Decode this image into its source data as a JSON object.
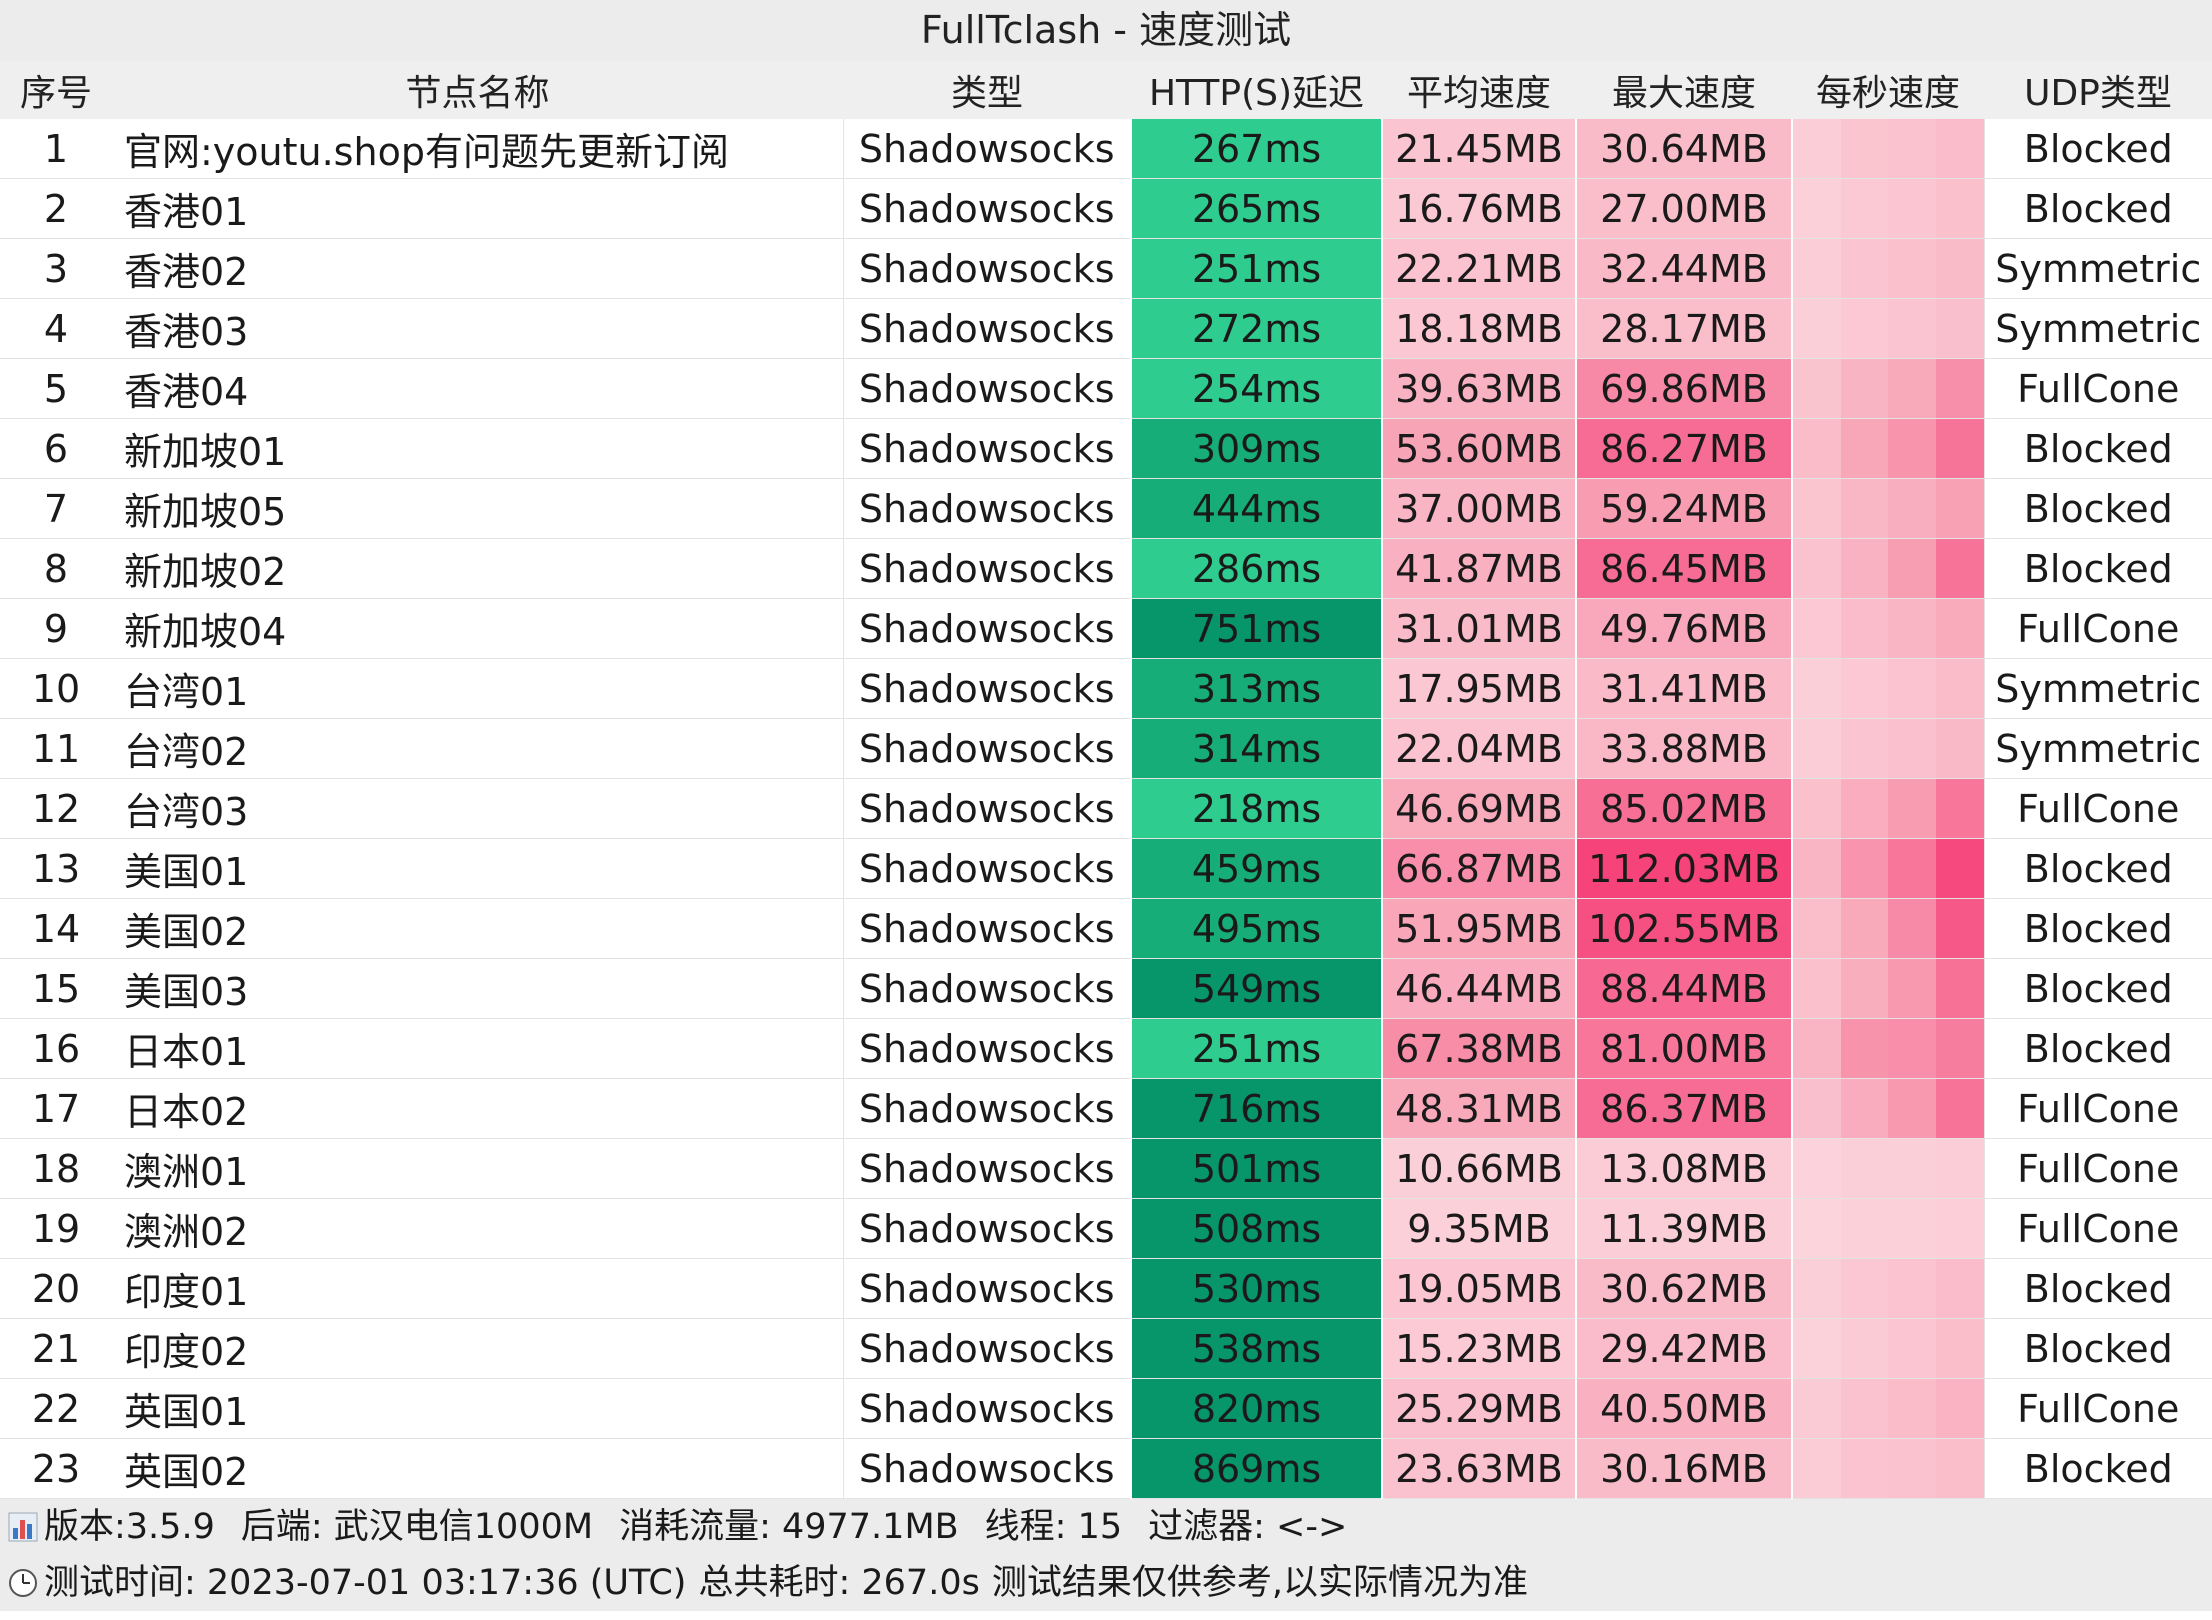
{
  "title": "FullTclash - 速度测试",
  "headers": [
    "序号",
    "节点名称",
    "类型",
    "HTTP(S)延迟",
    "平均速度",
    "最大速度",
    "每秒速度",
    "UDP类型"
  ],
  "rows": [
    {
      "idx": "1",
      "name": "官网:youtu.shop有问题先更新订阅",
      "type": "Shadowsocks",
      "latency": "267ms",
      "avg": "21.45MB",
      "max": "30.64MB",
      "udp": "Blocked"
    },
    {
      "idx": "2",
      "name": "香港01",
      "type": "Shadowsocks",
      "latency": "265ms",
      "avg": "16.76MB",
      "max": "27.00MB",
      "udp": "Blocked"
    },
    {
      "idx": "3",
      "name": "香港02",
      "type": "Shadowsocks",
      "latency": "251ms",
      "avg": "22.21MB",
      "max": "32.44MB",
      "udp": "Symmetric"
    },
    {
      "idx": "4",
      "name": "香港03",
      "type": "Shadowsocks",
      "latency": "272ms",
      "avg": "18.18MB",
      "max": "28.17MB",
      "udp": "Symmetric"
    },
    {
      "idx": "5",
      "name": "香港04",
      "type": "Shadowsocks",
      "latency": "254ms",
      "avg": "39.63MB",
      "max": "69.86MB",
      "udp": "FullCone"
    },
    {
      "idx": "6",
      "name": "新加坡01",
      "type": "Shadowsocks",
      "latency": "309ms",
      "avg": "53.60MB",
      "max": "86.27MB",
      "udp": "Blocked"
    },
    {
      "idx": "7",
      "name": "新加坡05",
      "type": "Shadowsocks",
      "latency": "444ms",
      "avg": "37.00MB",
      "max": "59.24MB",
      "udp": "Blocked"
    },
    {
      "idx": "8",
      "name": "新加坡02",
      "type": "Shadowsocks",
      "latency": "286ms",
      "avg": "41.87MB",
      "max": "86.45MB",
      "udp": "Blocked"
    },
    {
      "idx": "9",
      "name": "新加坡04",
      "type": "Shadowsocks",
      "latency": "751ms",
      "avg": "31.01MB",
      "max": "49.76MB",
      "udp": "FullCone"
    },
    {
      "idx": "10",
      "name": "台湾01",
      "type": "Shadowsocks",
      "latency": "313ms",
      "avg": "17.95MB",
      "max": "31.41MB",
      "udp": "Symmetric"
    },
    {
      "idx": "11",
      "name": "台湾02",
      "type": "Shadowsocks",
      "latency": "314ms",
      "avg": "22.04MB",
      "max": "33.88MB",
      "udp": "Symmetric"
    },
    {
      "idx": "12",
      "name": "台湾03",
      "type": "Shadowsocks",
      "latency": "218ms",
      "avg": "46.69MB",
      "max": "85.02MB",
      "udp": "FullCone"
    },
    {
      "idx": "13",
      "name": "美国01",
      "type": "Shadowsocks",
      "latency": "459ms",
      "avg": "66.87MB",
      "max": "112.03MB",
      "udp": "Blocked"
    },
    {
      "idx": "14",
      "name": "美国02",
      "type": "Shadowsocks",
      "latency": "495ms",
      "avg": "51.95MB",
      "max": "102.55MB",
      "udp": "Blocked"
    },
    {
      "idx": "15",
      "name": "美国03",
      "type": "Shadowsocks",
      "latency": "549ms",
      "avg": "46.44MB",
      "max": "88.44MB",
      "udp": "Blocked"
    },
    {
      "idx": "16",
      "name": "日本01",
      "type": "Shadowsocks",
      "latency": "251ms",
      "avg": "67.38MB",
      "max": "81.00MB",
      "udp": "Blocked"
    },
    {
      "idx": "17",
      "name": "日本02",
      "type": "Shadowsocks",
      "latency": "716ms",
      "avg": "48.31MB",
      "max": "86.37MB",
      "udp": "FullCone"
    },
    {
      "idx": "18",
      "name": "澳洲01",
      "type": "Shadowsocks",
      "latency": "501ms",
      "avg": "10.66MB",
      "max": "13.08MB",
      "udp": "FullCone"
    },
    {
      "idx": "19",
      "name": "澳洲02",
      "type": "Shadowsocks",
      "latency": "508ms",
      "avg": "9.35MB",
      "max": "11.39MB",
      "udp": "FullCone"
    },
    {
      "idx": "20",
      "name": "印度01",
      "type": "Shadowsocks",
      "latency": "530ms",
      "avg": "19.05MB",
      "max": "30.62MB",
      "udp": "Blocked"
    },
    {
      "idx": "21",
      "name": "印度02",
      "type": "Shadowsocks",
      "latency": "538ms",
      "avg": "15.23MB",
      "max": "29.42MB",
      "udp": "Blocked"
    },
    {
      "idx": "22",
      "name": "英国01",
      "type": "Shadowsocks",
      "latency": "820ms",
      "avg": "25.29MB",
      "max": "40.50MB",
      "udp": "FullCone"
    },
    {
      "idx": "23",
      "name": "英国02",
      "type": "Shadowsocks",
      "latency": "869ms",
      "avg": "23.63MB",
      "max": "30.16MB",
      "udp": "Blocked"
    }
  ],
  "footer": {
    "line1": [
      "版本:3.5.9",
      "后端: 武汉电信1000M",
      "消耗流量: 4977.1MB",
      "线程: 15",
      "过滤器: <->"
    ],
    "line2": [
      "测试时间: 2023-07-01 03:17:36 (UTC)",
      "总共耗时: 267.0s",
      "测试结果仅供参考,以实际情况为准"
    ],
    "icons": [
      "bar-chart-icon",
      "clock-icon"
    ]
  },
  "colors": {
    "latency_fast": "#2ecc8f",
    "latency_mid": "#16ad78",
    "latency_slow": "#07956a",
    "speed_low": "#fcd9e0",
    "speed_mid": "#f8a3b6",
    "speed_high": "#f6437a"
  }
}
